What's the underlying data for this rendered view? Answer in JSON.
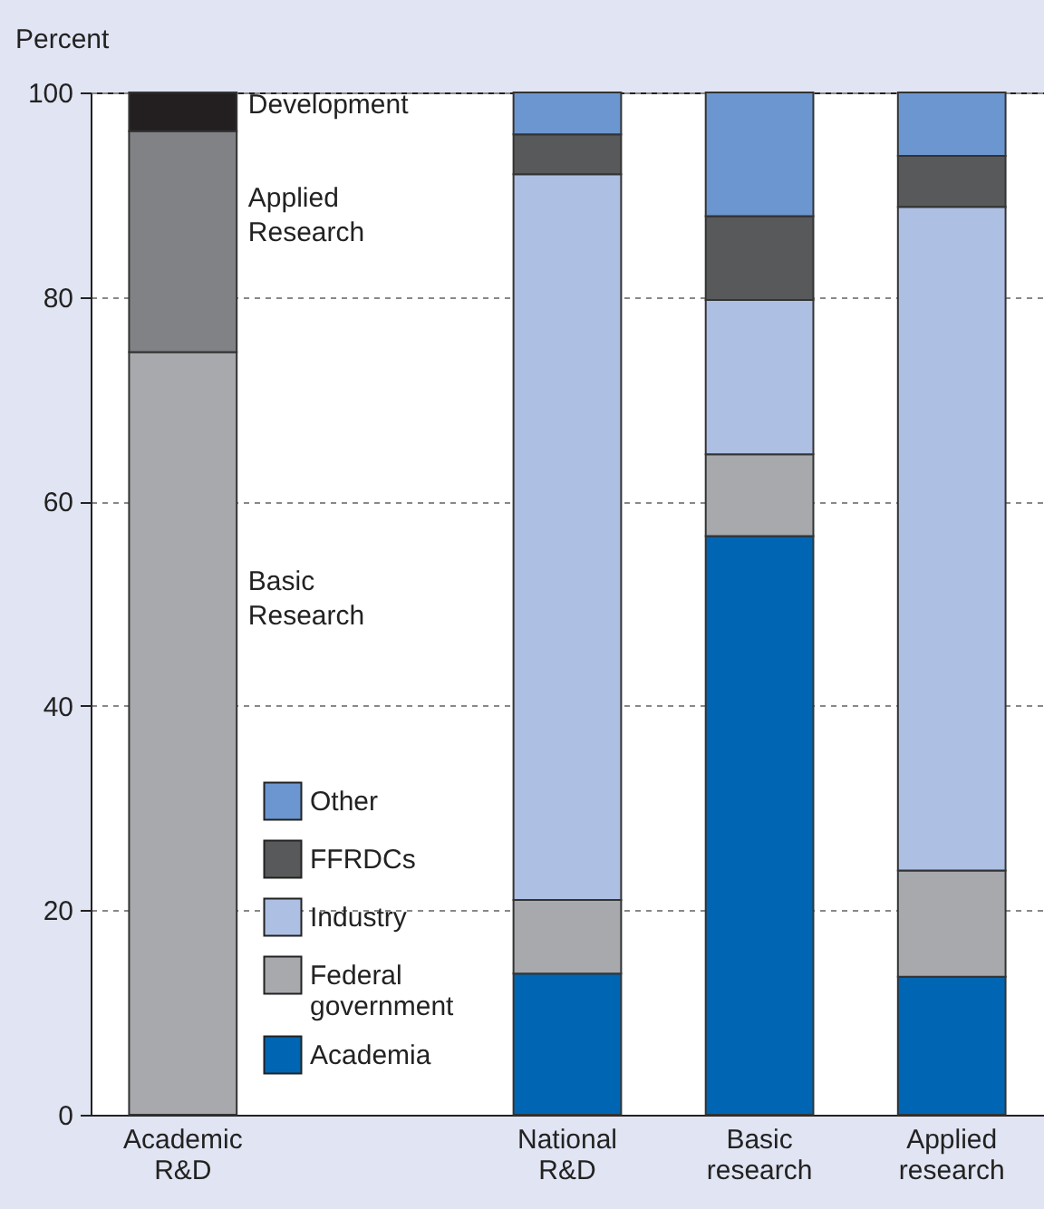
{
  "chart_data": {
    "type": "bar",
    "stacked": true,
    "ylabel": "Percent",
    "categories": [
      "Academic R&D",
      null,
      "National R&D",
      "Basic research",
      "Applied research"
    ],
    "series": [
      {
        "name": "Basic Research",
        "color": "#a7a9ac",
        "values": [
          74.6,
          null,
          null,
          null,
          null
        ]
      },
      {
        "name": "Applied Research",
        "color": "#808285",
        "values": [
          21.6,
          null,
          null,
          null,
          null
        ]
      },
      {
        "name": "Development",
        "color": "#231f20",
        "values": [
          3.8,
          null,
          null,
          null,
          null
        ]
      },
      {
        "name": "Academia",
        "color": "#0066b3",
        "values": [
          null,
          null,
          13.8,
          56.6,
          13.5
        ]
      },
      {
        "name": "Federal government",
        "color": "#a7a9ac",
        "values": [
          null,
          null,
          7.2,
          8.0,
          10.4
        ]
      },
      {
        "name": "Industry",
        "color": "#adbfe3",
        "values": [
          null,
          null,
          71.0,
          15.1,
          64.9
        ]
      },
      {
        "name": "FFRDCs",
        "color": "#58595b",
        "values": [
          null,
          null,
          3.9,
          8.2,
          5.0
        ]
      },
      {
        "name": "Other",
        "color": "#6b96d0",
        "values": [
          null,
          null,
          4.1,
          12.1,
          6.2
        ]
      }
    ],
    "ylim": [
      0,
      100
    ],
    "yticks": [
      0,
      20,
      40,
      60,
      80,
      100
    ],
    "grid": "y",
    "legend": "bottom left"
  }
}
